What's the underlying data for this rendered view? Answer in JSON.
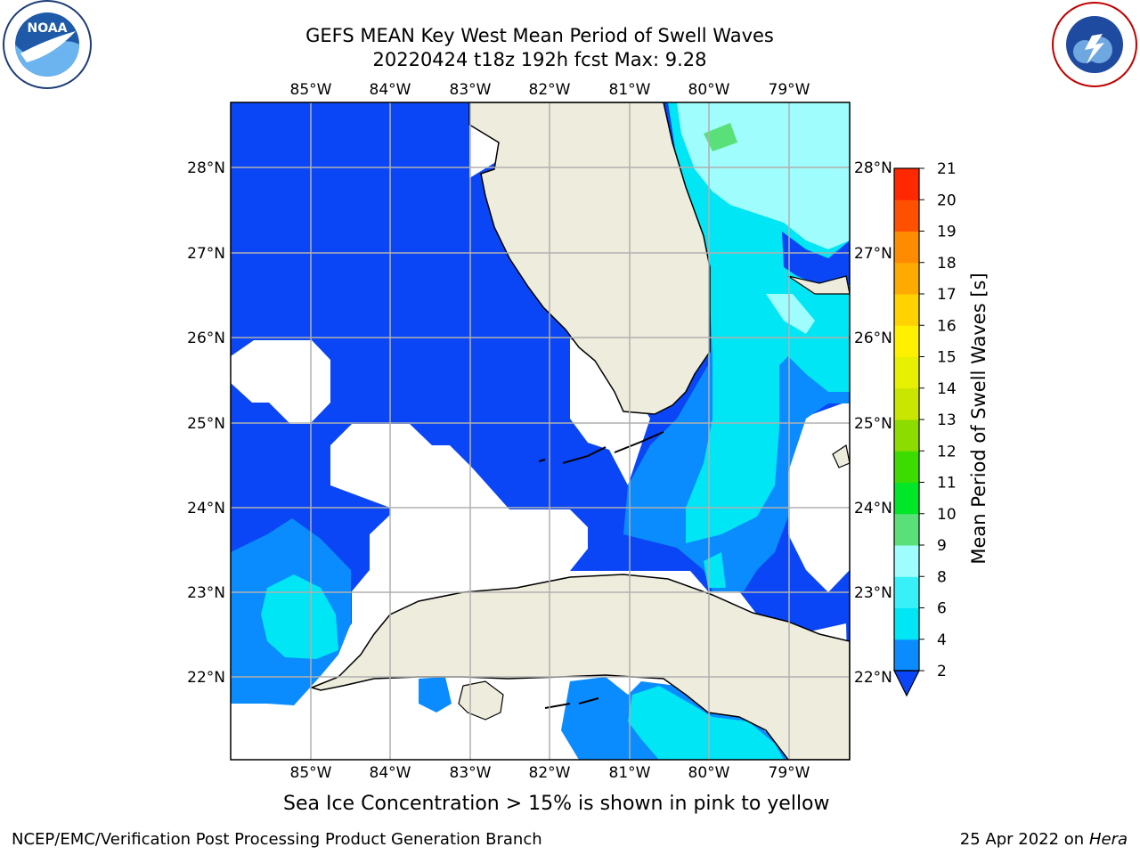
{
  "header": {
    "title_line1": "GEFS MEAN Key West Mean Period of Swell Waves",
    "title_line2": "20220424 t18z 192h fcst   Max: 9.28"
  },
  "logos": {
    "left": "noaa-logo",
    "right": "national-weather-service-logo"
  },
  "map": {
    "lon_labels": [
      "85°W",
      "84°W",
      "83°W",
      "82°W",
      "81°W",
      "80°W",
      "79°W"
    ],
    "lat_labels": [
      "28°N",
      "27°N",
      "26°N",
      "25°N",
      "24°N",
      "23°N",
      "22°N"
    ]
  },
  "colorbar": {
    "label": "Mean Period of Swell Waves [s]",
    "ticks": [
      "2",
      "4",
      "6",
      "8",
      "9",
      "10",
      "11",
      "12",
      "13",
      "14",
      "15",
      "16",
      "17",
      "18",
      "19",
      "20",
      "21"
    ],
    "colors": [
      "#0a46f5",
      "#0a8cff",
      "#00e6f5",
      "#38f0f8",
      "#a0fdfd",
      "#5ae078",
      "#00e628",
      "#3cdc00",
      "#8cdc00",
      "#c8e600",
      "#e6f000",
      "#fff000",
      "#ffd200",
      "#ffaa00",
      "#ff8c00",
      "#ff5000",
      "#ff2800",
      "#ff0000"
    ]
  },
  "caption": "Sea Ice Concentration > 15% is shown in pink to yellow",
  "footer": {
    "credit": "NCEP/EMC/Verification Post Processing Product Generation Branch",
    "date": "25 Apr 2022 on ",
    "host": "Hera"
  }
}
